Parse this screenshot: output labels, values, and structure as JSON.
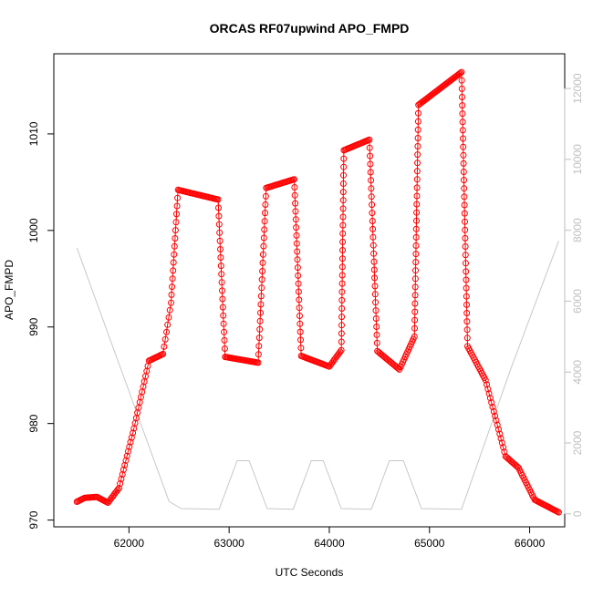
{
  "chart_data": {
    "type": "scatter",
    "title": "ORCAS RF07upwind APO_FMPD",
    "xlabel": "UTC Seconds",
    "ylabel": "APO_FMPD",
    "xlim": [
      61250,
      66350
    ],
    "ylim": [
      969.3,
      1018.3
    ],
    "y2lim": [
      -365,
      12980
    ],
    "x_ticks": [
      62000,
      63000,
      64000,
      65000,
      66000
    ],
    "y_ticks": [
      970,
      980,
      990,
      1000,
      1010
    ],
    "y2_ticks": [
      0,
      2000,
      4000,
      6000,
      8000,
      10000,
      12000
    ],
    "colors": {
      "points": "#ff0000",
      "altitude_line": "#c8c8c8",
      "right_axis": "#bfbfbf",
      "axes": "#000000"
    },
    "series": [
      {
        "name": "APO_FMPD",
        "style": "points+line",
        "segments": [
          {
            "x0": 61480,
            "x1": 61560,
            "y0": 971.9,
            "y1": 972.3
          },
          {
            "x0": 61560,
            "x1": 61680,
            "y0": 972.3,
            "y1": 972.4
          },
          {
            "x0": 61680,
            "x1": 61790,
            "y0": 972.4,
            "y1": 971.8
          },
          {
            "x0": 61790,
            "x1": 61900,
            "y0": 971.8,
            "y1": 973.3
          },
          {
            "x0": 61900,
            "x1": 62050,
            "y0": 973.3,
            "y1": 979.5
          },
          {
            "x0": 62050,
            "x1": 62200,
            "y0": 979.5,
            "y1": 986.5
          },
          {
            "x0": 62200,
            "x1": 62340,
            "y0": 986.5,
            "y1": 987.2
          },
          {
            "x0": 62340,
            "x1": 62420,
            "y0": 987.2,
            "y1": 992.5
          },
          {
            "x0": 62420,
            "x1": 62490,
            "y0": 992.5,
            "y1": 1004.2
          },
          {
            "x0": 62490,
            "x1": 62890,
            "y0": 1004.2,
            "y1": 1003.2
          },
          {
            "x0": 62890,
            "x1": 62960,
            "y0": 1003.2,
            "y1": 986.9
          },
          {
            "x0": 62960,
            "x1": 63290,
            "y0": 986.9,
            "y1": 986.3
          },
          {
            "x0": 63290,
            "x1": 63370,
            "y0": 986.3,
            "y1": 1004.4
          },
          {
            "x0": 63370,
            "x1": 63650,
            "y0": 1004.4,
            "y1": 1005.3
          },
          {
            "x0": 63650,
            "x1": 63720,
            "y0": 1005.3,
            "y1": 987.0
          },
          {
            "x0": 63720,
            "x1": 64000,
            "y0": 987.0,
            "y1": 985.9
          },
          {
            "x0": 64000,
            "x1": 64120,
            "y0": 985.9,
            "y1": 987.6
          },
          {
            "x0": 64120,
            "x1": 64145,
            "y0": 987.6,
            "y1": 1008.3
          },
          {
            "x0": 64145,
            "x1": 64400,
            "y0": 1008.3,
            "y1": 1009.4
          },
          {
            "x0": 64400,
            "x1": 64480,
            "y0": 1009.4,
            "y1": 987.5
          },
          {
            "x0": 64480,
            "x1": 64700,
            "y0": 987.5,
            "y1": 985.6
          },
          {
            "x0": 64700,
            "x1": 64850,
            "y0": 985.6,
            "y1": 989.0
          },
          {
            "x0": 64850,
            "x1": 64890,
            "y0": 989.0,
            "y1": 1013.0
          },
          {
            "x0": 64890,
            "x1": 65320,
            "y0": 1013.0,
            "y1": 1016.4
          },
          {
            "x0": 65320,
            "x1": 65380,
            "y0": 1016.4,
            "y1": 988.0
          },
          {
            "x0": 65380,
            "x1": 65560,
            "y0": 988.0,
            "y1": 984.5
          },
          {
            "x0": 65560,
            "x1": 65760,
            "y0": 984.5,
            "y1": 976.6
          },
          {
            "x0": 65760,
            "x1": 65890,
            "y0": 976.6,
            "y1": 975.4
          },
          {
            "x0": 65890,
            "x1": 66050,
            "y0": 975.4,
            "y1": 972.1
          },
          {
            "x0": 66050,
            "x1": 66290,
            "y0": 972.1,
            "y1": 970.8
          }
        ]
      },
      {
        "name": "Altitude",
        "axis": "right",
        "style": "line",
        "x": [
          61480,
          62400,
          62520,
          62900,
          63080,
          63200,
          63380,
          63640,
          63820,
          63940,
          64120,
          64420,
          64600,
          64740,
          64920,
          65320,
          65800,
          66290
        ],
        "y": [
          7500,
          350,
          150,
          130,
          1500,
          1500,
          150,
          130,
          1500,
          1500,
          150,
          130,
          1500,
          1500,
          150,
          130,
          4000,
          7700
        ]
      }
    ]
  }
}
